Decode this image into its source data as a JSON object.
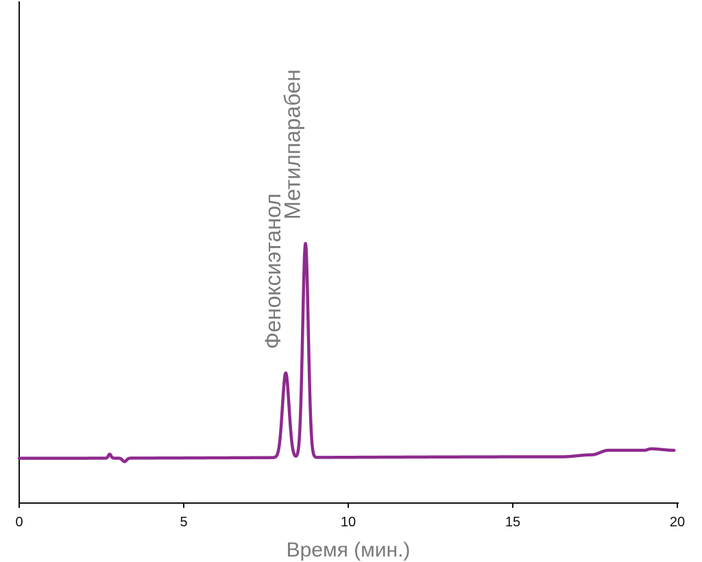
{
  "chart_data": {
    "type": "line",
    "title": "",
    "xlabel": "Время (мин.)",
    "ylabel": "",
    "xlim": [
      0,
      20
    ],
    "ylim": [
      0,
      100
    ],
    "x_ticks": [
      {
        "value": 0,
        "label": "0"
      },
      {
        "value": 5,
        "label": "5"
      },
      {
        "value": 10,
        "label": "10"
      },
      {
        "value": 15,
        "label": "15"
      },
      {
        "value": 20,
        "label": "20"
      }
    ],
    "grid": false,
    "legend": "none",
    "series": [
      {
        "color": "#8e2a8e",
        "baseline": 9.0,
        "noise": [
          {
            "x": 2.75,
            "amp": 0.8,
            "width": 0.04
          },
          {
            "x": 3.2,
            "amp": -0.7,
            "width": 0.06
          }
        ],
        "drift": [
          {
            "x": 0,
            "y": 9.0
          },
          {
            "x": 16.5,
            "y": 9.3
          },
          {
            "x": 17.4,
            "y": 9.7
          },
          {
            "x": 17.9,
            "y": 10.6
          },
          {
            "x": 19.0,
            "y": 10.6
          },
          {
            "x": 19.2,
            "y": 10.9
          },
          {
            "x": 19.9,
            "y": 10.6
          }
        ],
        "peaks": [
          {
            "name": "Феноксиэтанол",
            "x": 8.1,
            "height": 17,
            "sigma": 0.1
          },
          {
            "name": "Метилпарабен",
            "x": 8.7,
            "height": 43,
            "sigma": 0.085
          }
        ],
        "x_end": 19.9
      }
    ]
  }
}
